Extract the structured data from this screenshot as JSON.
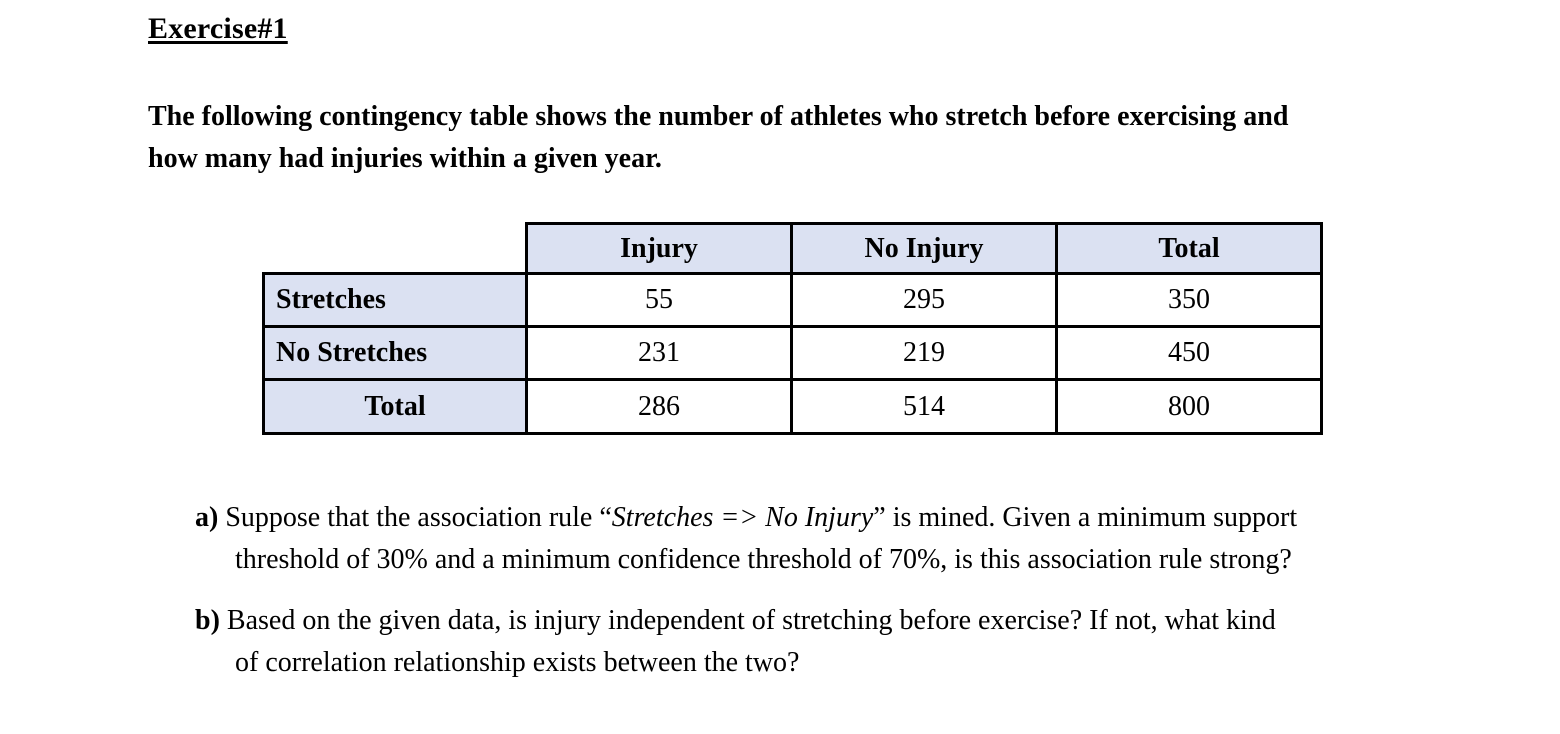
{
  "document": {
    "title": "Exercise#1",
    "intro": {
      "line1": "The following contingency table shows the number of athletes who stretch before exercising and",
      "line2": "how many had injuries within a given year."
    }
  },
  "table": {
    "corner": "",
    "col_headers": [
      "Injury",
      "No Injury",
      "Total"
    ],
    "rows": [
      {
        "label": "Stretches",
        "values": [
          "55",
          "295",
          "350"
        ]
      },
      {
        "label": "No Stretches",
        "values": [
          "231",
          "219",
          "450"
        ]
      },
      {
        "label": "Total",
        "values": [
          "286",
          "514",
          "800"
        ]
      }
    ]
  },
  "questions": {
    "a": {
      "label": "a)",
      "line1_pre": "Suppose that the association rule “",
      "line1_italic": "Stretches => No Injury",
      "line1_post": "” is mined. Given a minimum support",
      "line2": "threshold of 30% and a minimum confidence threshold of 70%, is this association rule strong?"
    },
    "b": {
      "label": "b)",
      "line1": "Based on the given data, is injury independent of stretching before exercise? If not, what kind",
      "line2": "of correlation relationship exists between the two?"
    }
  },
  "colors": {
    "cell_shade": "#dbe1f2",
    "table_border": "#000000",
    "text": "#000000",
    "background": "#ffffff"
  }
}
